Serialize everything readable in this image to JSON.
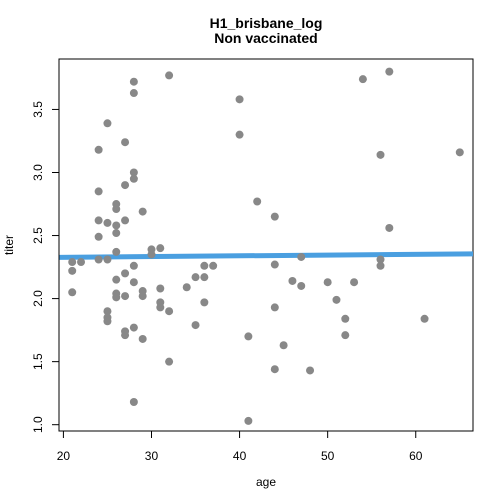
{
  "chart_data": {
    "type": "scatter",
    "title": "H1_brisbane_log",
    "subtitle": "Non vaccinated",
    "xlabel": "age",
    "ylabel": "titer",
    "xlim": [
      19.5,
      66.5
    ],
    "ylim": [
      0.95,
      3.9
    ],
    "xticks": [
      20,
      30,
      40,
      50,
      60
    ],
    "yticks": [
      1.0,
      1.5,
      2.0,
      2.5,
      3.0,
      3.5
    ],
    "grid": false,
    "legend": "none",
    "point_color": "#888888",
    "line_color": "#4a9fe0",
    "points": [
      {
        "x": 21,
        "y": 2.29
      },
      {
        "x": 21,
        "y": 2.22
      },
      {
        "x": 21,
        "y": 2.05
      },
      {
        "x": 22,
        "y": 2.29
      },
      {
        "x": 24,
        "y": 3.18
      },
      {
        "x": 24,
        "y": 2.85
      },
      {
        "x": 24,
        "y": 2.62
      },
      {
        "x": 24,
        "y": 2.49
      },
      {
        "x": 24,
        "y": 2.31
      },
      {
        "x": 25,
        "y": 3.39
      },
      {
        "x": 25,
        "y": 2.6
      },
      {
        "x": 25,
        "y": 2.31
      },
      {
        "x": 25,
        "y": 1.9
      },
      {
        "x": 25,
        "y": 1.85
      },
      {
        "x": 25,
        "y": 1.82
      },
      {
        "x": 26,
        "y": 2.75
      },
      {
        "x": 26,
        "y": 2.71
      },
      {
        "x": 26,
        "y": 2.58
      },
      {
        "x": 26,
        "y": 2.52
      },
      {
        "x": 26,
        "y": 2.37
      },
      {
        "x": 26,
        "y": 2.15
      },
      {
        "x": 26,
        "y": 2.04
      },
      {
        "x": 26,
        "y": 2.01
      },
      {
        "x": 27,
        "y": 3.24
      },
      {
        "x": 27,
        "y": 2.9
      },
      {
        "x": 27,
        "y": 2.62
      },
      {
        "x": 27,
        "y": 2.2
      },
      {
        "x": 27,
        "y": 2.02
      },
      {
        "x": 27,
        "y": 1.74
      },
      {
        "x": 27,
        "y": 1.71
      },
      {
        "x": 28,
        "y": 3.72
      },
      {
        "x": 28,
        "y": 3.63
      },
      {
        "x": 28,
        "y": 3.0
      },
      {
        "x": 28,
        "y": 2.95
      },
      {
        "x": 28,
        "y": 2.26
      },
      {
        "x": 28,
        "y": 2.13
      },
      {
        "x": 28,
        "y": 1.77
      },
      {
        "x": 28,
        "y": 1.18
      },
      {
        "x": 29,
        "y": 2.69
      },
      {
        "x": 29,
        "y": 2.06
      },
      {
        "x": 29,
        "y": 2.02
      },
      {
        "x": 29,
        "y": 1.68
      },
      {
        "x": 30,
        "y": 2.39
      },
      {
        "x": 30,
        "y": 2.35
      },
      {
        "x": 31,
        "y": 2.4
      },
      {
        "x": 31,
        "y": 2.08
      },
      {
        "x": 31,
        "y": 1.97
      },
      {
        "x": 31,
        "y": 1.93
      },
      {
        "x": 32,
        "y": 3.77
      },
      {
        "x": 32,
        "y": 1.9
      },
      {
        "x": 32,
        "y": 1.5
      },
      {
        "x": 34,
        "y": 2.09
      },
      {
        "x": 35,
        "y": 2.17
      },
      {
        "x": 35,
        "y": 1.79
      },
      {
        "x": 36,
        "y": 2.26
      },
      {
        "x": 36,
        "y": 2.17
      },
      {
        "x": 36,
        "y": 1.97
      },
      {
        "x": 37,
        "y": 2.26
      },
      {
        "x": 40,
        "y": 3.58
      },
      {
        "x": 40,
        "y": 3.3
      },
      {
        "x": 41,
        "y": 1.7
      },
      {
        "x": 41,
        "y": 1.03
      },
      {
        "x": 42,
        "y": 2.77
      },
      {
        "x": 44,
        "y": 2.65
      },
      {
        "x": 44,
        "y": 2.27
      },
      {
        "x": 44,
        "y": 1.93
      },
      {
        "x": 44,
        "y": 1.44
      },
      {
        "x": 45,
        "y": 1.63
      },
      {
        "x": 46,
        "y": 2.14
      },
      {
        "x": 47,
        "y": 2.33
      },
      {
        "x": 47,
        "y": 2.1
      },
      {
        "x": 48,
        "y": 1.43
      },
      {
        "x": 50,
        "y": 2.13
      },
      {
        "x": 51,
        "y": 1.99
      },
      {
        "x": 52,
        "y": 1.84
      },
      {
        "x": 52,
        "y": 1.71
      },
      {
        "x": 53,
        "y": 2.13
      },
      {
        "x": 54,
        "y": 3.74
      },
      {
        "x": 56,
        "y": 3.14
      },
      {
        "x": 56,
        "y": 2.31
      },
      {
        "x": 56,
        "y": 2.26
      },
      {
        "x": 57,
        "y": 3.8
      },
      {
        "x": 57,
        "y": 2.56
      },
      {
        "x": 61,
        "y": 1.84
      },
      {
        "x": 65,
        "y": 3.16
      }
    ],
    "fit_line": {
      "x": [
        19.5,
        66.5
      ],
      "y": [
        2.327,
        2.355
      ]
    }
  }
}
